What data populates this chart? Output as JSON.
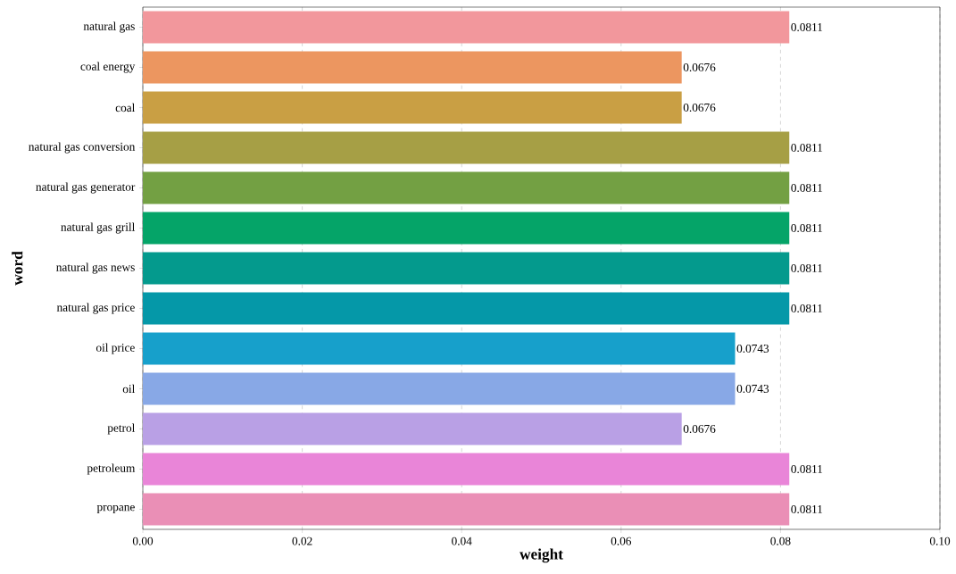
{
  "chart_data": {
    "type": "bar",
    "orientation": "horizontal",
    "xlabel": "weight",
    "ylabel": "word",
    "categories": [
      "natural gas",
      "coal energy",
      "coal",
      "natural gas conversion",
      "natural gas generator",
      "natural gas grill",
      "natural gas news",
      "natural gas price",
      "oil price",
      "oil",
      "petrol",
      "petroleum",
      "propane"
    ],
    "values": [
      0.0811,
      0.0676,
      0.0676,
      0.0811,
      0.0811,
      0.0811,
      0.0811,
      0.0811,
      0.0743,
      0.0743,
      0.0676,
      0.0811,
      0.0811
    ],
    "colors": [
      "#f2979c",
      "#ec9660",
      "#c99f44",
      "#a69f45",
      "#73a043",
      "#05a468",
      "#049a8d",
      "#0598a8",
      "#17a0cb",
      "#88a8e6",
      "#b9a0e5",
      "#e985d8",
      "#ea8fb6"
    ],
    "xlim": [
      0,
      0.1
    ],
    "xticks": [
      {
        "value": 0,
        "label": "0.00"
      },
      {
        "value": 0.02,
        "label": "0.02"
      },
      {
        "value": 0.04,
        "label": "0.04"
      },
      {
        "value": 0.06,
        "label": "0.06"
      },
      {
        "value": 0.08,
        "label": "0.08"
      },
      {
        "value": 0.1,
        "label": "0.10"
      }
    ],
    "grid": "x",
    "data_labels": true
  }
}
